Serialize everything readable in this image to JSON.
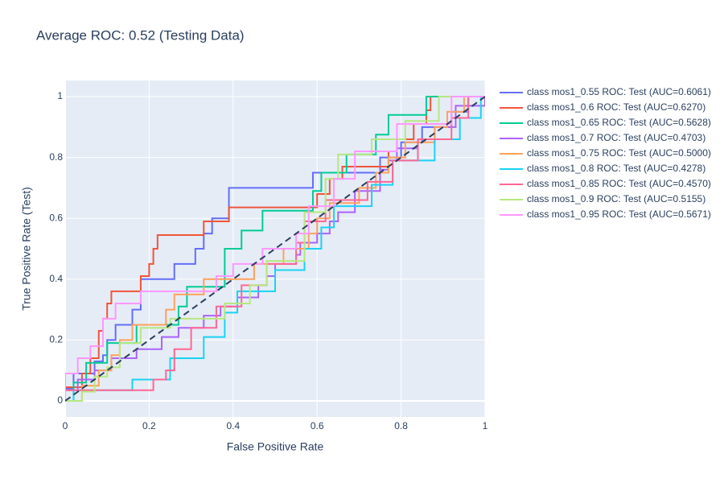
{
  "chart_data": {
    "type": "line",
    "title": "Average ROC: 0.52 (Testing Data)",
    "x_label": "False Positive Rate",
    "y_label": "True Positive Rate (Test)",
    "xlim": [
      0,
      1
    ],
    "ylim": [
      -0.053,
      1.053
    ],
    "xticks": [
      0,
      0.2,
      0.4,
      0.6,
      0.8,
      1
    ],
    "yticks": [
      0,
      0.2,
      0.4,
      0.6,
      0.8,
      1
    ],
    "grid": true,
    "legend": "right",
    "diagonal": {
      "x": [
        0,
        1
      ],
      "values": [
        0,
        1
      ],
      "color": "#2a3f5f"
    },
    "series": [
      {
        "name": "class mos1_0.55 ROC: Test (AUC=0.6061)",
        "color": "#636efa",
        "x": [
          0,
          0,
          0.02,
          0.02,
          0.07,
          0.07,
          0.09,
          0.09,
          0.1,
          0.1,
          0.12,
          0.12,
          0.16,
          0.16,
          0.18,
          0.18,
          0.26,
          0.26,
          0.31,
          0.31,
          0.33,
          0.33,
          0.35,
          0.35,
          0.39,
          0.39,
          0.59,
          0.59,
          0.75,
          0.75,
          0.8,
          0.8,
          0.85,
          0.85,
          0.92,
          0.92,
          0.96,
          0.96,
          1
        ],
        "values": [
          0,
          0.04,
          0.04,
          0.09,
          0.09,
          0.13,
          0.13,
          0.15,
          0.15,
          0.2,
          0.2,
          0.25,
          0.25,
          0.3,
          0.3,
          0.4,
          0.4,
          0.45,
          0.45,
          0.5,
          0.5,
          0.55,
          0.55,
          0.6,
          0.6,
          0.7,
          0.7,
          0.75,
          0.75,
          0.8,
          0.8,
          0.85,
          0.85,
          0.9,
          0.9,
          0.95,
          0.95,
          1,
          1
        ]
      },
      {
        "name": "class mos1_0.6 ROC: Test (AUC=0.6270)",
        "color": "#ef553b",
        "x": [
          0,
          0,
          0.04,
          0.04,
          0.06,
          0.06,
          0.08,
          0.08,
          0.09,
          0.09,
          0.1,
          0.1,
          0.11,
          0.11,
          0.18,
          0.18,
          0.2,
          0.2,
          0.21,
          0.21,
          0.22,
          0.22,
          0.33,
          0.33,
          0.39,
          0.39,
          0.6,
          0.6,
          0.63,
          0.63,
          0.66,
          0.66,
          0.77,
          0.77,
          0.79,
          0.79,
          0.83,
          0.83,
          0.86,
          0.86,
          0.87,
          0.87,
          1
        ],
        "values": [
          0,
          0.045,
          0.045,
          0.09,
          0.09,
          0.14,
          0.14,
          0.23,
          0.23,
          0.27,
          0.27,
          0.32,
          0.32,
          0.36,
          0.36,
          0.41,
          0.41,
          0.45,
          0.45,
          0.5,
          0.5,
          0.545,
          0.545,
          0.59,
          0.59,
          0.636,
          0.636,
          0.68,
          0.68,
          0.73,
          0.73,
          0.77,
          0.77,
          0.82,
          0.82,
          0.86,
          0.86,
          0.91,
          0.91,
          0.955,
          0.955,
          1,
          1
        ]
      },
      {
        "name": "class mos1_0.65 ROC: Test (AUC=0.5628)",
        "color": "#00cc96",
        "x": [
          0,
          0.02,
          0.02,
          0.05,
          0.05,
          0.1,
          0.1,
          0.17,
          0.17,
          0.27,
          0.27,
          0.29,
          0.29,
          0.38,
          0.38,
          0.42,
          0.42,
          0.47,
          0.47,
          0.59,
          0.59,
          0.61,
          0.61,
          0.67,
          0.67,
          0.74,
          0.74,
          0.77,
          0.77,
          0.86,
          0.86,
          1
        ],
        "values": [
          0,
          0,
          0.06,
          0.06,
          0.125,
          0.125,
          0.19,
          0.19,
          0.25,
          0.25,
          0.31,
          0.31,
          0.375,
          0.375,
          0.5,
          0.5,
          0.56,
          0.56,
          0.625,
          0.625,
          0.69,
          0.69,
          0.75,
          0.75,
          0.81,
          0.81,
          0.875,
          0.875,
          0.94,
          0.94,
          1,
          1
        ]
      },
      {
        "name": "class mos1_0.7 ROC: Test (AUC=0.4703)",
        "color": "#ab63fa",
        "x": [
          0,
          0,
          0.03,
          0.03,
          0.07,
          0.07,
          0.11,
          0.11,
          0.17,
          0.17,
          0.23,
          0.23,
          0.27,
          0.27,
          0.33,
          0.33,
          0.37,
          0.37,
          0.41,
          0.41,
          0.46,
          0.46,
          0.48,
          0.48,
          0.5,
          0.5,
          0.55,
          0.55,
          0.56,
          0.56,
          0.6,
          0.6,
          0.63,
          0.63,
          0.65,
          0.65,
          0.69,
          0.69,
          0.75,
          0.75,
          0.77,
          0.77,
          0.79,
          0.79,
          0.84,
          0.84,
          0.88,
          0.88,
          0.93,
          0.93,
          1,
          1
        ],
        "values": [
          0,
          0.035,
          0.035,
          0.07,
          0.07,
          0.1,
          0.1,
          0.14,
          0.14,
          0.17,
          0.17,
          0.21,
          0.21,
          0.24,
          0.24,
          0.28,
          0.28,
          0.31,
          0.31,
          0.34,
          0.34,
          0.38,
          0.38,
          0.41,
          0.41,
          0.45,
          0.45,
          0.48,
          0.48,
          0.52,
          0.52,
          0.55,
          0.55,
          0.59,
          0.59,
          0.62,
          0.62,
          0.69,
          0.69,
          0.76,
          0.76,
          0.79,
          0.79,
          0.83,
          0.83,
          0.86,
          0.86,
          0.9,
          0.9,
          0.97,
          0.97,
          1
        ]
      },
      {
        "name": "class mos1_0.75 ROC: Test (AUC=0.5000)",
        "color": "#ffa15a",
        "x": [
          0,
          0.04,
          0.04,
          0.08,
          0.08,
          0.11,
          0.11,
          0.13,
          0.13,
          0.16,
          0.16,
          0.24,
          0.24,
          0.26,
          0.26,
          0.33,
          0.33,
          0.45,
          0.45,
          0.52,
          0.52,
          0.58,
          0.58,
          0.6,
          0.6,
          0.63,
          0.63,
          0.7,
          0.7,
          0.74,
          0.74,
          0.77,
          0.77,
          0.81,
          0.81,
          0.88,
          0.88,
          0.91,
          0.91,
          0.95,
          0.95,
          1
        ],
        "values": [
          0,
          0,
          0.05,
          0.05,
          0.1,
          0.1,
          0.15,
          0.15,
          0.2,
          0.2,
          0.25,
          0.25,
          0.3,
          0.3,
          0.35,
          0.35,
          0.4,
          0.4,
          0.45,
          0.45,
          0.5,
          0.5,
          0.55,
          0.55,
          0.6,
          0.6,
          0.65,
          0.65,
          0.7,
          0.7,
          0.75,
          0.75,
          0.8,
          0.8,
          0.85,
          0.85,
          0.9,
          0.9,
          0.95,
          0.95,
          1,
          1
        ]
      },
      {
        "name": "class mos1_0.8 ROC: Test (AUC=0.4278)",
        "color": "#19d3f3",
        "x": [
          0,
          0.02,
          0.02,
          0.16,
          0.16,
          0.25,
          0.25,
          0.33,
          0.33,
          0.38,
          0.38,
          0.41,
          0.41,
          0.5,
          0.5,
          0.57,
          0.57,
          0.61,
          0.61,
          0.64,
          0.64,
          0.73,
          0.73,
          0.78,
          0.78,
          0.88,
          0.88,
          0.94,
          0.94,
          0.99,
          0.99,
          1
        ],
        "values": [
          0,
          0,
          0.035,
          0.035,
          0.07,
          0.07,
          0.14,
          0.14,
          0.21,
          0.21,
          0.29,
          0.29,
          0.36,
          0.36,
          0.43,
          0.43,
          0.5,
          0.5,
          0.57,
          0.57,
          0.64,
          0.64,
          0.71,
          0.71,
          0.79,
          0.79,
          0.86,
          0.86,
          0.93,
          0.93,
          1,
          1
        ]
      },
      {
        "name": "class mos1_0.85 ROC: Test (AUC=0.4570)",
        "color": "#ff6692",
        "x": [
          0,
          0,
          0.21,
          0.21,
          0.24,
          0.24,
          0.26,
          0.26,
          0.3,
          0.3,
          0.36,
          0.36,
          0.42,
          0.42,
          0.48,
          0.48,
          0.55,
          0.55,
          0.57,
          0.57,
          0.62,
          0.62,
          0.72,
          0.72,
          0.78,
          0.78,
          0.84,
          0.84,
          0.92,
          0.92,
          0.96,
          0.96,
          1
        ],
        "values": [
          0,
          0.035,
          0.035,
          0.07,
          0.07,
          0.1,
          0.1,
          0.17,
          0.17,
          0.24,
          0.24,
          0.31,
          0.31,
          0.38,
          0.38,
          0.45,
          0.45,
          0.52,
          0.52,
          0.59,
          0.59,
          0.66,
          0.66,
          0.72,
          0.72,
          0.79,
          0.79,
          0.86,
          0.86,
          0.93,
          0.93,
          1,
          1
        ]
      },
      {
        "name": "class mos1_0.9 ROC: Test (AUC=0.5155)",
        "color": "#b6e880",
        "x": [
          0,
          0.04,
          0.04,
          0.07,
          0.07,
          0.1,
          0.1,
          0.13,
          0.13,
          0.18,
          0.18,
          0.25,
          0.25,
          0.38,
          0.38,
          0.44,
          0.44,
          0.48,
          0.48,
          0.57,
          0.57,
          0.62,
          0.62,
          0.65,
          0.65,
          0.73,
          0.73,
          0.81,
          0.81,
          0.89,
          0.89,
          1
        ],
        "values": [
          0,
          0,
          0.03,
          0.03,
          0.08,
          0.08,
          0.11,
          0.11,
          0.19,
          0.19,
          0.24,
          0.24,
          0.27,
          0.27,
          0.32,
          0.32,
          0.38,
          0.38,
          0.46,
          0.46,
          0.62,
          0.62,
          0.73,
          0.73,
          0.81,
          0.81,
          0.86,
          0.86,
          0.92,
          0.92,
          1,
          1
        ]
      },
      {
        "name": "class mos1_0.95 ROC: Test (AUC=0.5671)",
        "color": "#ff97ff",
        "x": [
          0,
          0,
          0.03,
          0.03,
          0.06,
          0.06,
          0.09,
          0.09,
          0.12,
          0.12,
          0.18,
          0.18,
          0.36,
          0.36,
          0.4,
          0.4,
          0.47,
          0.47,
          0.55,
          0.55,
          0.58,
          0.58,
          0.64,
          0.64,
          0.69,
          0.69,
          0.79,
          0.79,
          0.92,
          0.92,
          1
        ],
        "values": [
          0,
          0.09,
          0.09,
          0.14,
          0.14,
          0.18,
          0.18,
          0.27,
          0.27,
          0.32,
          0.32,
          0.36,
          0.36,
          0.41,
          0.41,
          0.45,
          0.45,
          0.5,
          0.5,
          0.55,
          0.55,
          0.64,
          0.64,
          0.73,
          0.73,
          0.82,
          0.82,
          0.91,
          0.91,
          1,
          1
        ]
      }
    ]
  }
}
